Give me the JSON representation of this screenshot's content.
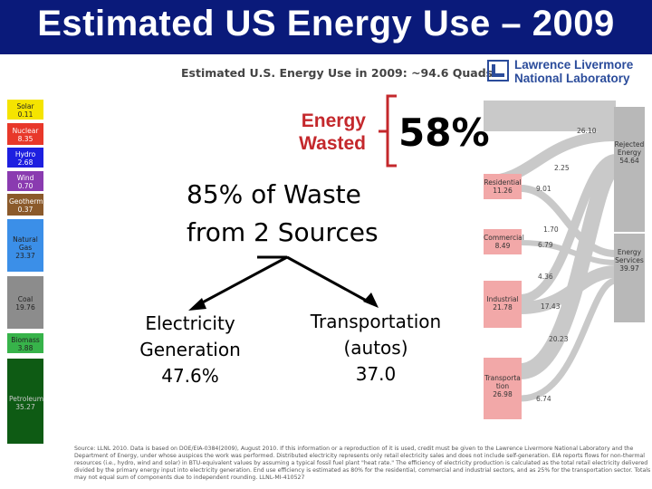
{
  "header": {
    "title": "Estimated US Energy Use – 2009"
  },
  "chart": {
    "subtitle": "Estimated U.S. Energy Use in 2009: ~94.6 Quads",
    "logo_line1": "Lawrence Livermore",
    "logo_line2": "National Laboratory",
    "sources": [
      {
        "name": "Solar",
        "value": "0.11",
        "color": "#f5e400"
      },
      {
        "name": "Nuclear",
        "value": "8.35",
        "color": "#e8382a"
      },
      {
        "name": "Hydro",
        "value": "2.68",
        "color": "#1d1fe0"
      },
      {
        "name": "Wind",
        "value": "0.70",
        "color": "#8a3bb0"
      },
      {
        "name": "Geothermal",
        "value": "0.37",
        "color": "#8b5a2b"
      },
      {
        "name": "Natural Gas",
        "value": "23.37",
        "color": "#3b8fe8"
      },
      {
        "name": "Coal",
        "value": "19.76",
        "color": "#8c8c8c"
      },
      {
        "name": "Biomass",
        "value": "3.88",
        "color": "#37b34a"
      },
      {
        "name": "Petroleum",
        "value": "35.27",
        "color": "#0e5b14"
      }
    ],
    "sectors": [
      {
        "name": "Residential",
        "value": "11.26"
      },
      {
        "name": "Commercial",
        "value": "8.49"
      },
      {
        "name": "Industrial",
        "value": "21.78"
      },
      {
        "name": "Transportation",
        "value": "26.98"
      }
    ],
    "rejected": {
      "name": "Rejected Energy",
      "value": "54.64"
    },
    "services": {
      "name": "Energy Services",
      "value": "39.97"
    },
    "flow_labels": {
      "top_rejected": "26.10",
      "res_com": "2.25",
      "res_out": "9.01",
      "com_res": "1.70",
      "com_out": "6.79",
      "ind_com": "4.36",
      "ind_out": "17.43",
      "trans_rejected": "20.23",
      "trans_out": "6.74"
    },
    "footnote": "Source: LLNL 2010. Data is based on DOE/EIA-0384(2009), August 2010. If this information or a reproduction of it is used, credit must be given to the Lawrence Livermore National Laboratory and the Department of Energy, under whose auspices the work was performed. Distributed electricity represents only retail electricity sales and does not include self-generation. EIA reports flows for non-thermal resources (i.e., hydro, wind and solar) in BTU-equivalent values by assuming a typical fossil fuel plant \"heat rate.\" The efficiency of electricity production is calculated as the total retail electricity delivered divided by the primary energy input into electricity generation. End use efficiency is estimated as 80% for the residential, commercial and industrial sectors, and as 25% for the transportation sector. Totals may not equal sum of components due to independent rounding. LLNL-MI-410527"
  },
  "overlay": {
    "energy_wasted_line1": "Energy",
    "energy_wasted_line2": "Wasted",
    "percent": "58%",
    "waste_line1": "85% of Waste",
    "waste_line2": "from 2 Sources",
    "electricity_line1": "Electricity",
    "electricity_line2": "Generation",
    "electricity_value": "47.6%",
    "transport_line1": "Transportation",
    "transport_line2": "(autos)",
    "transport_value": "37.0"
  }
}
